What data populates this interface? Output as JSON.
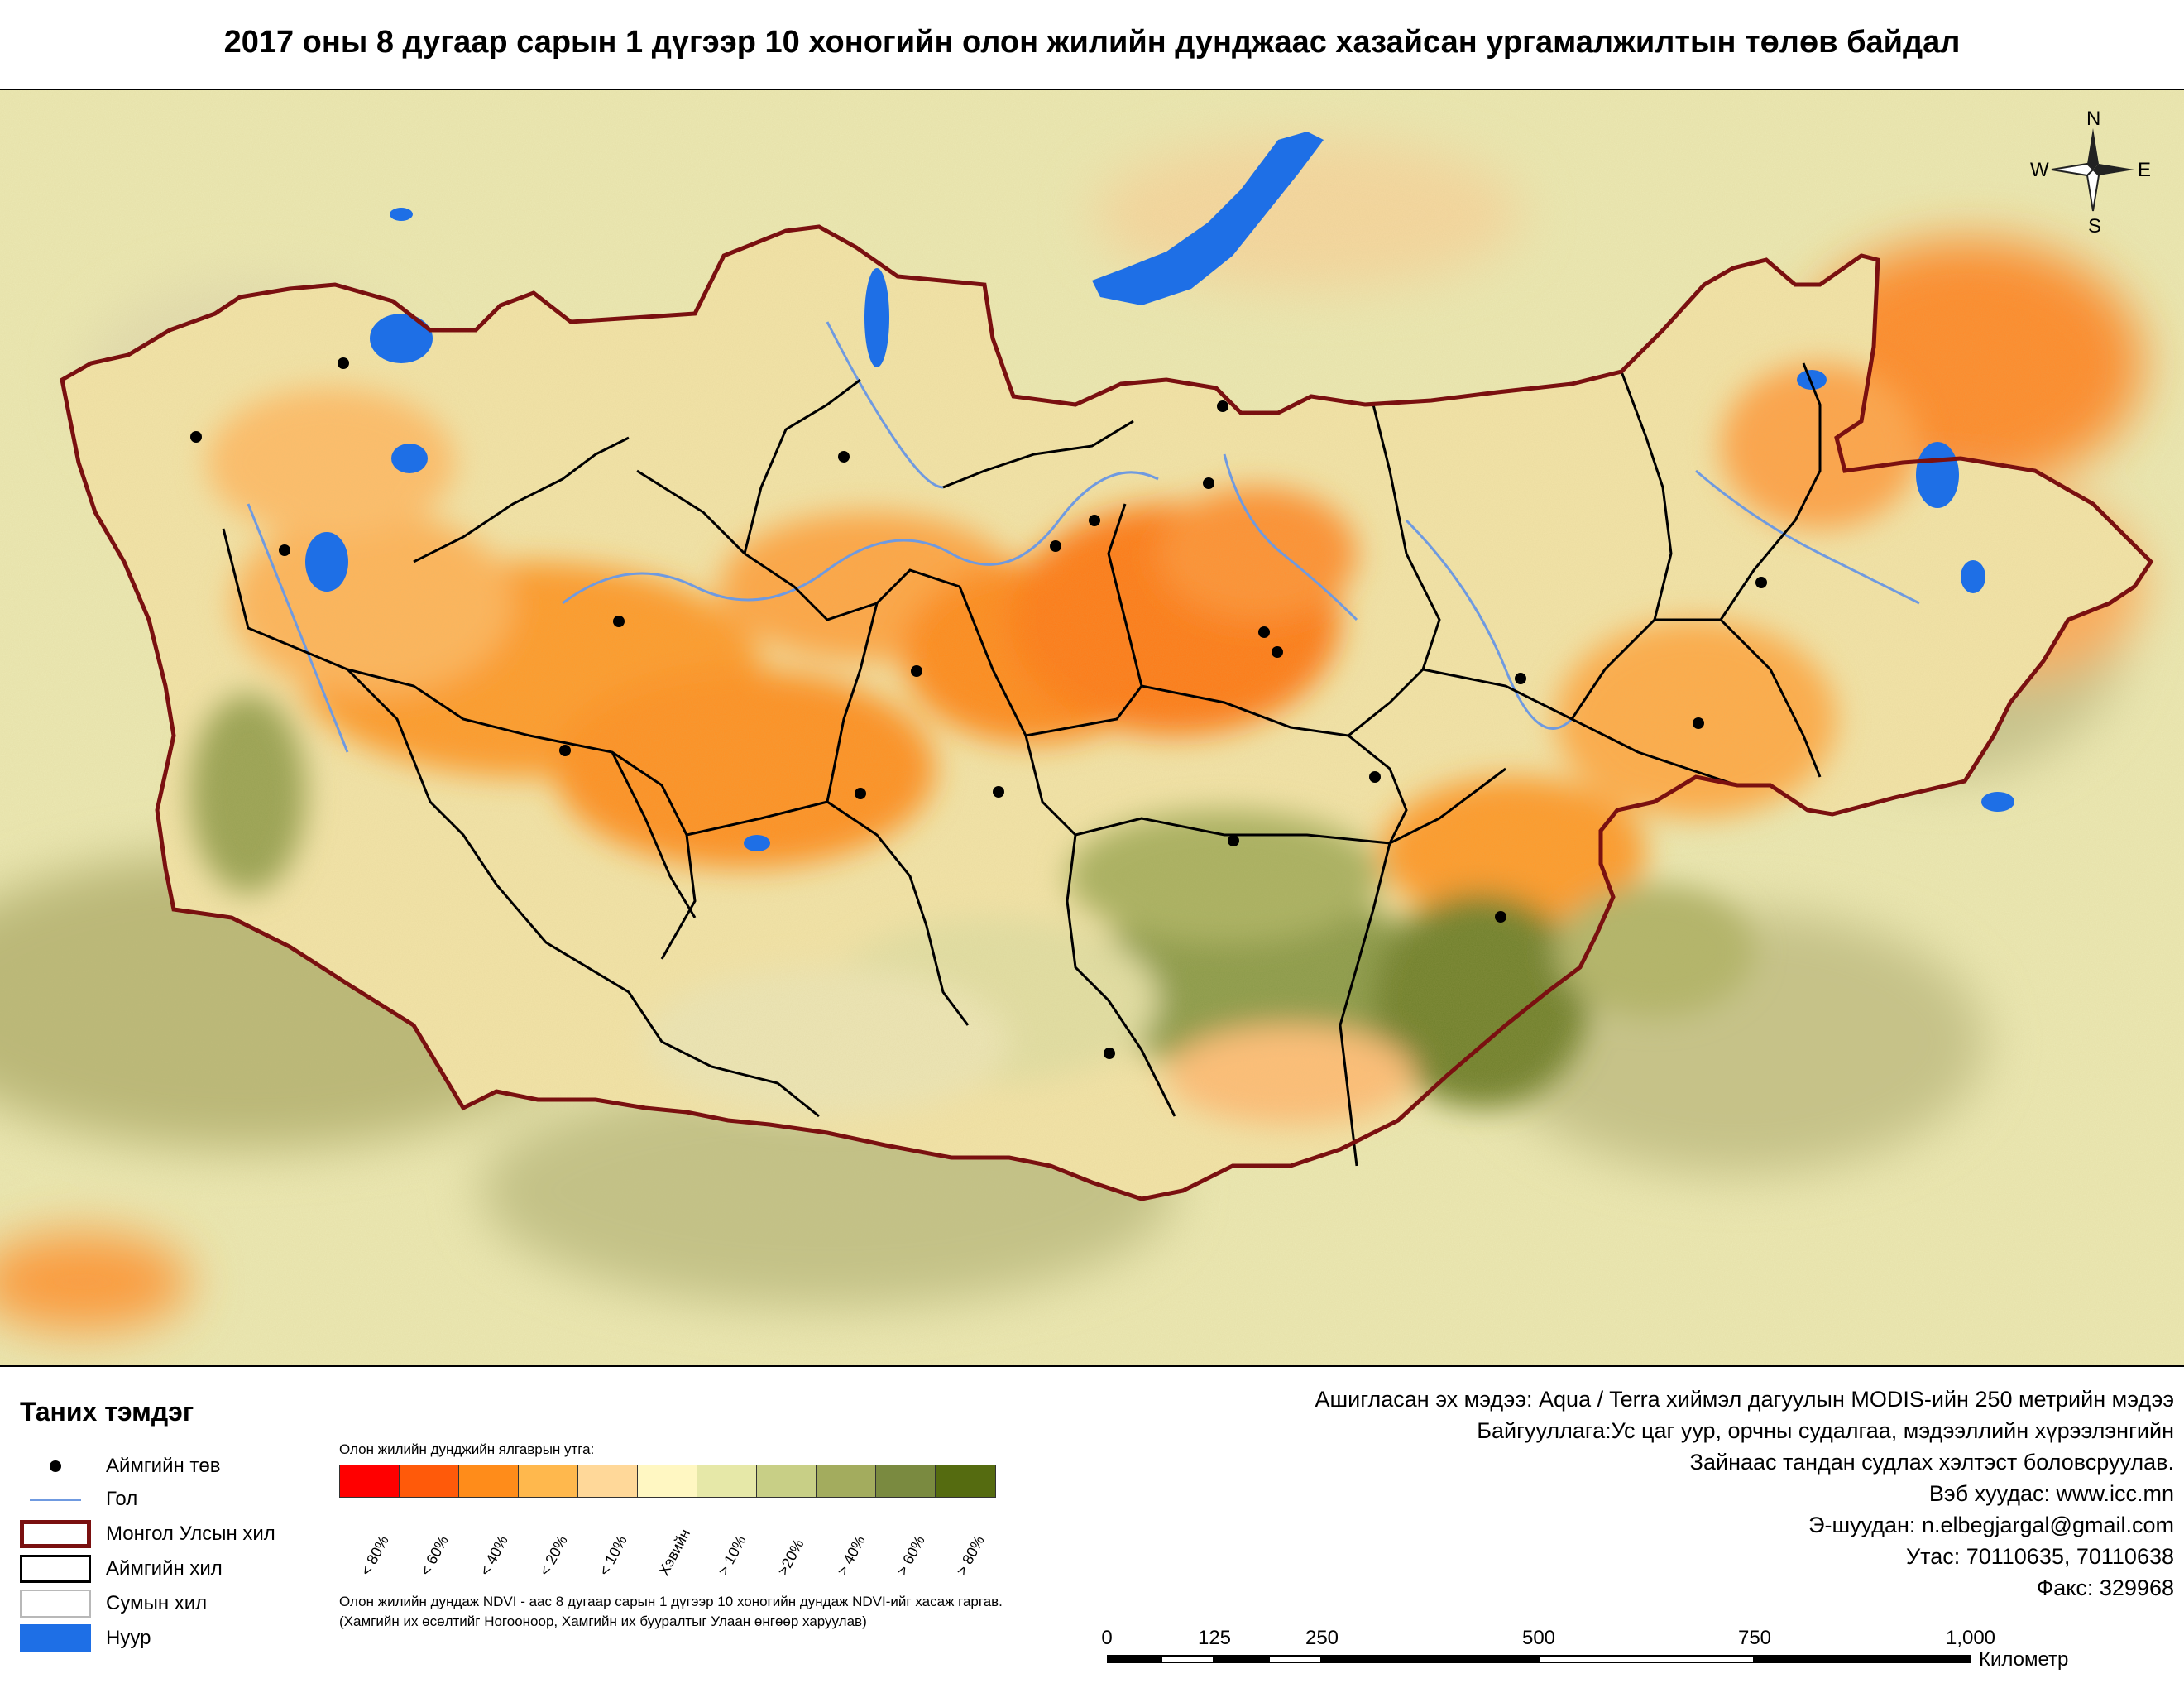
{
  "title": "2017 оны 8 дугаар сарын 1 дүгээр 10 хоногийн олон жилийн дунджаас хазайсан ургамалжилтын төлөв байдал",
  "compass": {
    "n": "N",
    "s": "S",
    "e": "E",
    "w": "W"
  },
  "legend": {
    "title": "Таних тэмдэг",
    "items": [
      {
        "label": "Аймгийн төв",
        "symbol": "dot-icon"
      },
      {
        "label": "Гол",
        "symbol": "river-line-icon"
      },
      {
        "label": "Монгол Улсын хил",
        "symbol": "national-border-icon",
        "color": "#7a1010"
      },
      {
        "label": "Аймгийн хил",
        "symbol": "province-border-icon",
        "color": "#000000"
      },
      {
        "label": "Сумын хил",
        "symbol": "soum-border-icon",
        "color": "#b8b8b8"
      },
      {
        "label": "Нуур",
        "symbol": "lake-icon",
        "color": "#1e6fe6"
      }
    ]
  },
  "ramp": {
    "caption": "Олон жилийн дунджийн ялгаврын утга:",
    "classes": [
      {
        "label": "< 80%",
        "color": "#ff0000"
      },
      {
        "label": "< 60%",
        "color": "#ff5a0a"
      },
      {
        "label": "< 40%",
        "color": "#ff8c1a"
      },
      {
        "label": "< 20%",
        "color": "#ffb84d"
      },
      {
        "label": "< 10%",
        "color": "#ffd899"
      },
      {
        "label": "Хэвийн",
        "color": "#fff7c2"
      },
      {
        "label": "> 10%",
        "color": "#e6e8a8"
      },
      {
        "label": ">20%",
        "color": "#c8cf86"
      },
      {
        "label": "> 40%",
        "color": "#a3ac5e"
      },
      {
        "label": "> 60%",
        "color": "#7a8a40"
      },
      {
        "label": "> 80%",
        "color": "#556b10"
      }
    ]
  },
  "notes": {
    "line1": "Олон жилийн дундаж NDVI - аас 8 дугаар сарын 1 дүгээр 10 хоногийн дундаж NDVI-ийг хасаж гаргав.",
    "line2": "(Хамгийн их өсөлтийг Ногооноор,  Хамгийн их бууралтыг Улаан өнгөөр харуулав)"
  },
  "info": {
    "source": "Ашигласан эх мэдээ: Aqua / Terra хиймэл дагуулын MODIS-ийн 250 метрийн мэдээ",
    "org": "Байгууллага:Ус цаг уур, орчны судалгаа, мэдээллийн хүрээлэнгийн",
    "processed": "Зайнаас тандан судлах хэлтэст боловсруулав.",
    "web": "Вэб хуудас: www.icc.mn",
    "email": "Э-шуудан: n.elbegjargal@gmail.com",
    "phone": "Утас: 70110635, 70110638",
    "fax": "Факс: 329968"
  },
  "scale": {
    "ticks": [
      "0",
      "125",
      "250",
      "500",
      "750",
      "1,000"
    ],
    "unit": "Километр"
  }
}
